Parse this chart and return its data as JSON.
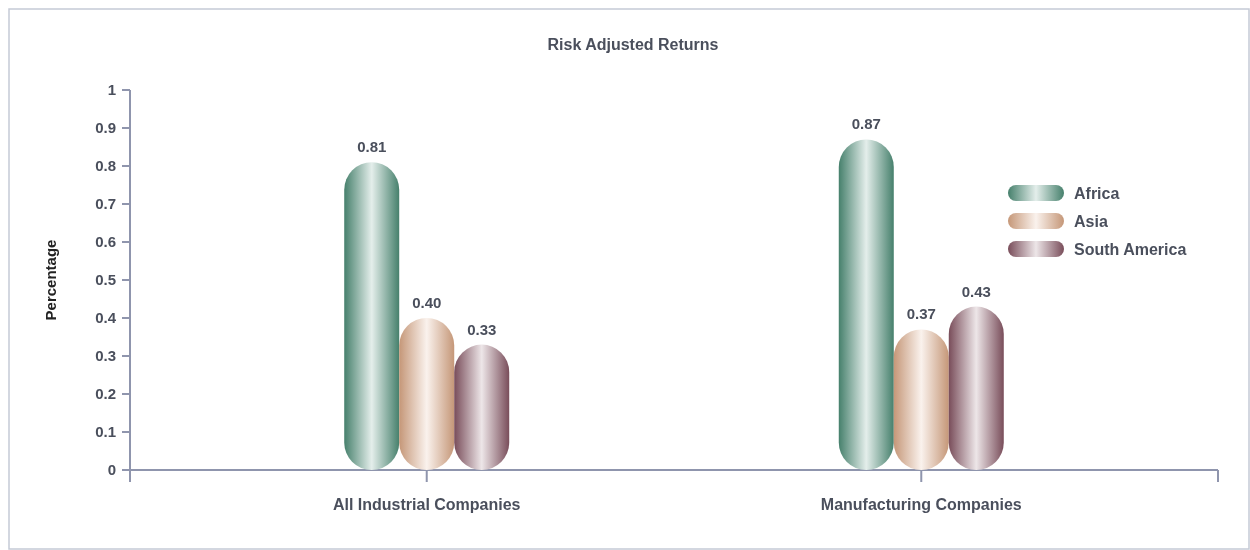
{
  "chart_data": {
    "type": "bar",
    "title": "Risk Adjusted Returns",
    "ylabel": "Percentage",
    "categories": [
      "All Industrial Companies",
      "Manufacturing Companies"
    ],
    "series": [
      {
        "name": "Africa",
        "color": "#4e8e78",
        "values": [
          0.81,
          0.87
        ],
        "value_labels": [
          "0.81",
          "0.87"
        ]
      },
      {
        "name": "Asia",
        "color": "#dba886",
        "values": [
          0.4,
          0.37
        ],
        "value_labels": [
          "0.40",
          "0.37"
        ]
      },
      {
        "name": "South America",
        "color": "#875664",
        "values": [
          0.33,
          0.43
        ],
        "value_labels": [
          "0.33",
          "0.43"
        ]
      }
    ],
    "ylim": [
      0,
      1
    ],
    "yticks": [
      0,
      0.1,
      0.2,
      0.3,
      0.4,
      0.5,
      0.6,
      0.7,
      0.8,
      0.9,
      1
    ],
    "grid": false,
    "legend": "right"
  }
}
